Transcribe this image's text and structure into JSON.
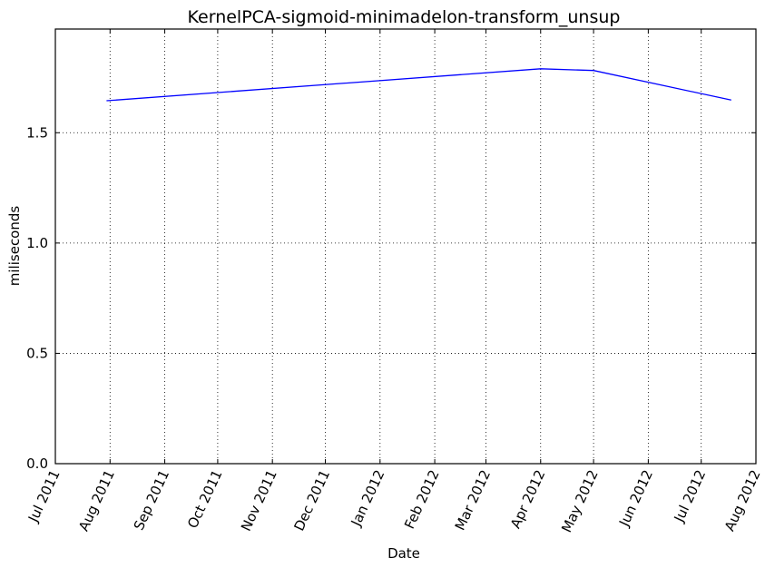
{
  "chart_data": {
    "type": "line",
    "title": "KernelPCA-sigmoid-minimadelon-transform_unsup",
    "xlabel": "Date",
    "ylabel": "miliseconds",
    "x_ticks": [
      "Jul 2011",
      "Aug 2011",
      "Sep 2011",
      "Oct 2011",
      "Nov 2011",
      "Dec 2011",
      "Jan 2012",
      "Feb 2012",
      "Mar 2012",
      "Apr 2012",
      "May 2012",
      "Jun 2012",
      "Jul 2012",
      "Aug 2012"
    ],
    "x_range": [
      "2011-07-01",
      "2012-08-01"
    ],
    "y_ticks": [
      "0.0",
      "0.5",
      "1.0",
      "1.5"
    ],
    "ylim": [
      0,
      1.97
    ],
    "grid": true,
    "series": [
      {
        "color": "#0000ff",
        "points": [
          {
            "x": "2011-07-30",
            "y": 1.645
          },
          {
            "x": "2012-04-01",
            "y": 1.79
          },
          {
            "x": "2012-05-01",
            "y": 1.782
          },
          {
            "x": "2012-07-18",
            "y": 1.648
          }
        ]
      }
    ]
  }
}
